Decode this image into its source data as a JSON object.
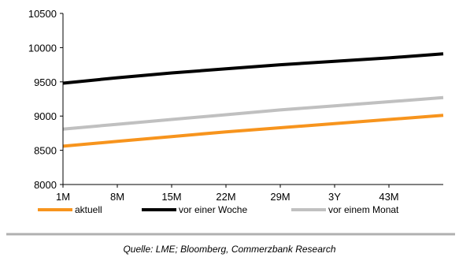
{
  "chart_data": {
    "type": "line",
    "categories": [
      "1M",
      "8M",
      "15M",
      "22M",
      "29M",
      "3Y",
      "43M"
    ],
    "x_range_months": [
      1,
      50
    ],
    "ylim": [
      8000,
      10500
    ],
    "yticks": [
      8000,
      8500,
      9000,
      9500,
      10000,
      10500
    ],
    "grid": false,
    "legend_position": "bottom",
    "series": [
      {
        "name": "aktuell",
        "color": "#f7941d",
        "x": [
          1,
          8,
          15,
          22,
          29,
          36,
          43,
          50
        ],
        "values": [
          8560,
          8630,
          8700,
          8770,
          8830,
          8890,
          8950,
          9010
        ]
      },
      {
        "name": "vor einer Woche",
        "color": "#000000",
        "x": [
          1,
          8,
          15,
          22,
          29,
          36,
          43,
          50
        ],
        "values": [
          9480,
          9560,
          9630,
          9690,
          9750,
          9800,
          9850,
          9910
        ]
      },
      {
        "name": "vor einem Monat",
        "color": "#c0c0c0",
        "x": [
          1,
          8,
          15,
          22,
          29,
          36,
          43,
          50
        ],
        "values": [
          8810,
          8880,
          8950,
          9020,
          9090,
          9150,
          9210,
          9270
        ]
      }
    ],
    "source": "Quelle: LME; Bloomberg, Commerzbank Research"
  }
}
